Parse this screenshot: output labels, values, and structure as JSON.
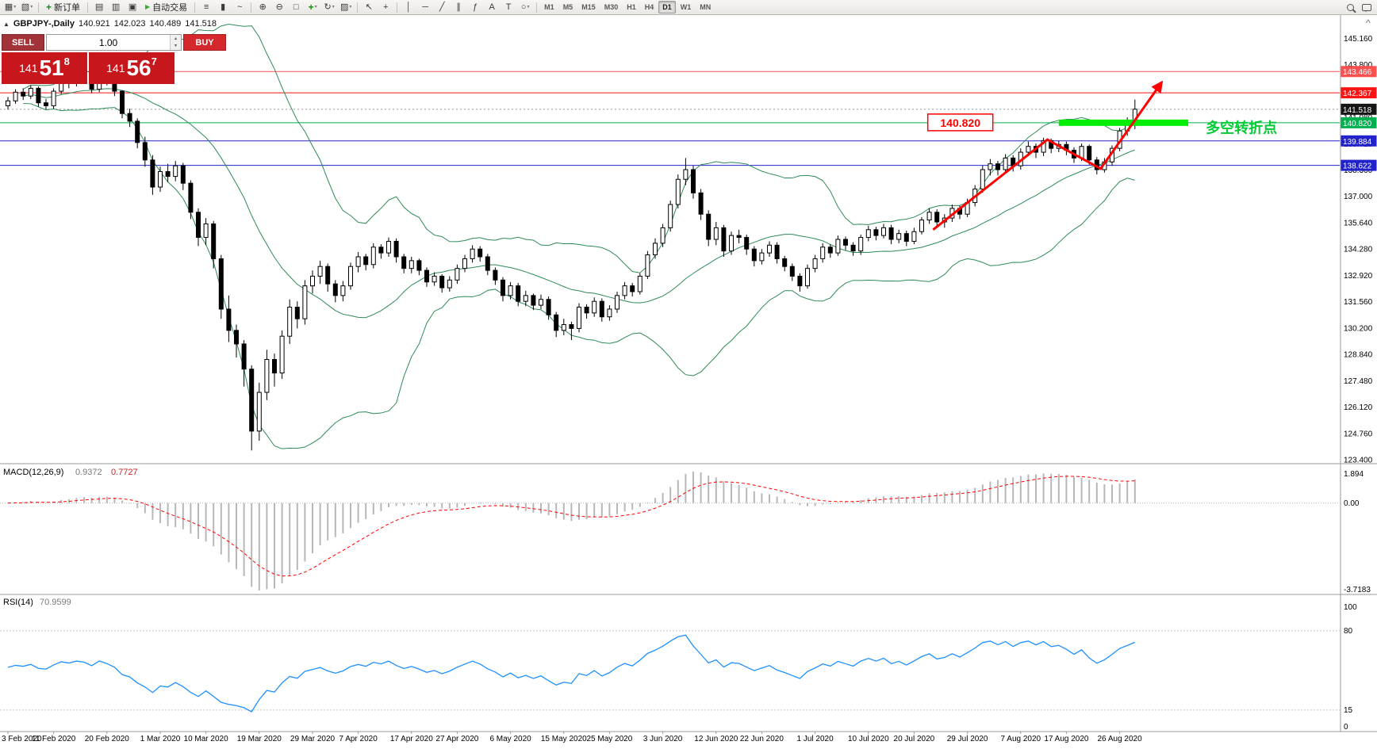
{
  "toolbar": {
    "new_order_label": "新订单",
    "auto_trading_label": "自动交易",
    "timeframes": [
      "M1",
      "M5",
      "M15",
      "M30",
      "H1",
      "H4",
      "D1",
      "W1",
      "MN"
    ],
    "active_timeframe": "D1"
  },
  "header": {
    "symbol_period": "GBPJPY-,Daily",
    "open": "140.921",
    "high": "142.023",
    "low": "140.489",
    "close": "141.518"
  },
  "one_click": {
    "sell_label": "SELL",
    "buy_label": "BUY",
    "lot_size": "1.00",
    "sell_price": {
      "base": "141",
      "big": "51",
      "sup": "8"
    },
    "buy_price": {
      "base": "141",
      "big": "56",
      "sup": "7"
    }
  },
  "chart_data": {
    "type": "candlestick",
    "symbol": "GBPJPY",
    "period": "Daily",
    "price_axis": [
      "145.160",
      "143.800",
      "142.440",
      "141.080",
      "139.720",
      "138.360",
      "137.000",
      "135.640",
      "134.280",
      "132.920",
      "131.560",
      "130.200",
      "128.840",
      "127.480",
      "126.120",
      "124.760",
      "123.400"
    ],
    "x_labels": [
      {
        "i": 0,
        "t": "3 Feb 2020"
      },
      {
        "i": 6,
        "t": "11 Feb 2020"
      },
      {
        "i": 13,
        "t": "20 Feb 2020"
      },
      {
        "i": 20,
        "t": "1 Mar 2020"
      },
      {
        "i": 26,
        "t": "10 Mar 2020"
      },
      {
        "i": 33,
        "t": "19 Mar 2020"
      },
      {
        "i": 40,
        "t": "29 Mar 2020"
      },
      {
        "i": 46,
        "t": "7 Apr 2020"
      },
      {
        "i": 53,
        "t": "17 Apr 2020"
      },
      {
        "i": 59,
        "t": "27 Apr 2020"
      },
      {
        "i": 66,
        "t": "6 May 2020"
      },
      {
        "i": 73,
        "t": "15 May 2020"
      },
      {
        "i": 79,
        "t": "25 May 2020"
      },
      {
        "i": 86,
        "t": "3 Jun 2020"
      },
      {
        "i": 93,
        "t": "12 Jun 2020"
      },
      {
        "i": 99,
        "t": "22 Jun 2020"
      },
      {
        "i": 106,
        "t": "1 Jul 2020"
      },
      {
        "i": 113,
        "t": "10 Jul 2020"
      },
      {
        "i": 119,
        "t": "20 Jul 2020"
      },
      {
        "i": 126,
        "t": "29 Jul 2020"
      },
      {
        "i": 133,
        "t": "7 Aug 2020"
      },
      {
        "i": 139,
        "t": "17 Aug 2020"
      },
      {
        "i": 146,
        "t": "26 Aug 2020"
      }
    ],
    "candles": [
      [
        141.7,
        142.15,
        141.5,
        141.95
      ],
      [
        141.95,
        142.55,
        141.8,
        142.4
      ],
      [
        142.4,
        142.6,
        142.0,
        142.2
      ],
      [
        142.2,
        142.75,
        142.05,
        142.6
      ],
      [
        142.6,
        142.7,
        141.65,
        141.85
      ],
      [
        141.85,
        142.05,
        141.5,
        141.7
      ],
      [
        141.7,
        142.6,
        141.55,
        142.45
      ],
      [
        142.45,
        143.2,
        142.3,
        143.05
      ],
      [
        143.05,
        143.25,
        142.6,
        142.85
      ],
      [
        142.85,
        143.4,
        142.7,
        143.2
      ],
      [
        143.2,
        143.35,
        142.85,
        143.05
      ],
      [
        143.05,
        143.15,
        142.35,
        142.55
      ],
      [
        142.55,
        143.45,
        142.4,
        143.3
      ],
      [
        143.3,
        143.5,
        142.75,
        142.95
      ],
      [
        142.95,
        143.05,
        142.2,
        142.45
      ],
      [
        142.45,
        142.5,
        141.05,
        141.3
      ],
      [
        141.3,
        141.55,
        140.6,
        140.9
      ],
      [
        140.9,
        141.05,
        139.5,
        139.8
      ],
      [
        139.8,
        140.1,
        138.55,
        138.9
      ],
      [
        138.9,
        139.15,
        137.1,
        137.5
      ],
      [
        137.5,
        138.55,
        137.25,
        138.3
      ],
      [
        138.3,
        138.7,
        137.75,
        138.05
      ],
      [
        138.05,
        138.85,
        137.8,
        138.6
      ],
      [
        138.6,
        138.75,
        137.35,
        137.7
      ],
      [
        137.7,
        137.85,
        135.85,
        136.2
      ],
      [
        136.2,
        136.4,
        134.45,
        134.9
      ],
      [
        134.9,
        135.9,
        134.5,
        135.6
      ],
      [
        135.6,
        135.75,
        133.3,
        133.8
      ],
      [
        133.8,
        134.0,
        130.7,
        131.2
      ],
      [
        131.2,
        131.9,
        129.5,
        130.1
      ],
      [
        130.1,
        130.4,
        128.7,
        129.4
      ],
      [
        129.4,
        129.6,
        127.2,
        128.1
      ],
      [
        128.1,
        128.3,
        123.9,
        124.9
      ],
      [
        124.9,
        127.4,
        124.4,
        126.9
      ],
      [
        126.9,
        129.1,
        126.5,
        128.6
      ],
      [
        128.6,
        128.9,
        127.2,
        127.9
      ],
      [
        127.9,
        130.1,
        127.6,
        129.8
      ],
      [
        129.8,
        131.7,
        129.4,
        131.3
      ],
      [
        131.3,
        131.6,
        130.2,
        130.7
      ],
      [
        130.7,
        132.7,
        130.4,
        132.4
      ],
      [
        132.4,
        133.2,
        132.0,
        132.9
      ],
      [
        132.9,
        133.7,
        132.5,
        133.4
      ],
      [
        133.4,
        133.55,
        132.1,
        132.5
      ],
      [
        132.5,
        132.7,
        131.55,
        131.9
      ],
      [
        131.9,
        132.65,
        131.6,
        132.4
      ],
      [
        132.4,
        133.6,
        132.2,
        133.4
      ],
      [
        133.4,
        134.15,
        133.1,
        133.9
      ],
      [
        133.9,
        134.05,
        133.2,
        133.5
      ],
      [
        133.5,
        134.6,
        133.3,
        134.4
      ],
      [
        134.4,
        134.55,
        133.8,
        134.1
      ],
      [
        134.1,
        134.9,
        133.9,
        134.7
      ],
      [
        134.7,
        134.85,
        133.6,
        133.9
      ],
      [
        133.9,
        134.05,
        133.05,
        133.3
      ],
      [
        133.3,
        133.9,
        133.05,
        133.7
      ],
      [
        133.7,
        133.8,
        132.95,
        133.2
      ],
      [
        133.2,
        133.35,
        132.35,
        132.6
      ],
      [
        132.6,
        133.1,
        132.4,
        132.9
      ],
      [
        132.9,
        133.0,
        132.05,
        132.3
      ],
      [
        132.3,
        132.9,
        132.1,
        132.7
      ],
      [
        132.7,
        133.5,
        132.5,
        133.3
      ],
      [
        133.3,
        134.0,
        133.1,
        133.8
      ],
      [
        133.8,
        134.5,
        133.6,
        134.3
      ],
      [
        134.3,
        134.45,
        133.65,
        133.9
      ],
      [
        133.9,
        134.05,
        132.95,
        133.2
      ],
      [
        133.2,
        133.35,
        132.45,
        132.7
      ],
      [
        132.7,
        132.85,
        131.6,
        131.9
      ],
      [
        131.9,
        132.6,
        131.7,
        132.4
      ],
      [
        132.4,
        132.55,
        131.35,
        131.6
      ],
      [
        131.6,
        132.15,
        131.35,
        131.9
      ],
      [
        131.9,
        132.0,
        131.15,
        131.4
      ],
      [
        131.4,
        131.95,
        131.2,
        131.7
      ],
      [
        131.7,
        131.85,
        130.65,
        130.9
      ],
      [
        130.9,
        131.05,
        129.75,
        130.1
      ],
      [
        130.1,
        130.7,
        129.85,
        130.4
      ],
      [
        130.4,
        130.55,
        129.6,
        130.2
      ],
      [
        130.2,
        131.5,
        130.0,
        131.3
      ],
      [
        131.3,
        131.45,
        130.7,
        131.0
      ],
      [
        131.0,
        131.8,
        130.8,
        131.6
      ],
      [
        131.6,
        131.75,
        130.55,
        130.8
      ],
      [
        130.8,
        131.4,
        130.6,
        131.2
      ],
      [
        131.2,
        132.1,
        131.0,
        131.9
      ],
      [
        131.9,
        132.6,
        131.7,
        132.4
      ],
      [
        132.4,
        132.55,
        131.85,
        132.1
      ],
      [
        132.1,
        133.05,
        131.95,
        132.9
      ],
      [
        132.9,
        134.2,
        132.75,
        134.0
      ],
      [
        134.0,
        134.85,
        133.8,
        134.6
      ],
      [
        134.6,
        135.6,
        134.4,
        135.4
      ],
      [
        135.4,
        136.8,
        135.2,
        136.6
      ],
      [
        136.6,
        138.15,
        136.4,
        137.9
      ],
      [
        137.9,
        139.0,
        137.6,
        138.4
      ],
      [
        138.4,
        138.6,
        136.9,
        137.2
      ],
      [
        137.2,
        137.4,
        135.8,
        136.1
      ],
      [
        136.1,
        136.3,
        134.45,
        134.8
      ],
      [
        134.8,
        135.7,
        134.5,
        135.4
      ],
      [
        135.4,
        135.55,
        133.9,
        134.2
      ],
      [
        134.2,
        135.2,
        134.0,
        135.0
      ],
      [
        135.0,
        135.3,
        134.6,
        134.9
      ],
      [
        134.9,
        135.05,
        134.0,
        134.3
      ],
      [
        134.3,
        134.45,
        133.4,
        133.7
      ],
      [
        133.7,
        134.3,
        133.5,
        134.1
      ],
      [
        134.1,
        134.7,
        133.9,
        134.5
      ],
      [
        134.5,
        134.65,
        133.55,
        133.8
      ],
      [
        133.8,
        133.95,
        133.15,
        133.4
      ],
      [
        133.4,
        133.55,
        132.65,
        132.9
      ],
      [
        132.9,
        133.05,
        132.1,
        132.4
      ],
      [
        132.4,
        133.5,
        132.25,
        133.3
      ],
      [
        133.3,
        134.0,
        133.1,
        133.8
      ],
      [
        133.8,
        134.6,
        133.6,
        134.4
      ],
      [
        134.4,
        134.55,
        133.85,
        134.1
      ],
      [
        134.1,
        135.0,
        133.95,
        134.8
      ],
      [
        134.8,
        134.95,
        134.25,
        134.5
      ],
      [
        134.5,
        134.65,
        133.95,
        134.2
      ],
      [
        134.2,
        135.05,
        134.0,
        134.9
      ],
      [
        134.9,
        135.5,
        134.7,
        135.3
      ],
      [
        135.3,
        135.45,
        134.75,
        135.0
      ],
      [
        135.0,
        135.6,
        134.85,
        135.4
      ],
      [
        135.4,
        135.55,
        134.55,
        134.8
      ],
      [
        134.8,
        135.3,
        134.6,
        135.1
      ],
      [
        135.1,
        135.25,
        134.45,
        134.7
      ],
      [
        134.7,
        135.4,
        134.55,
        135.2
      ],
      [
        135.2,
        135.95,
        135.05,
        135.8
      ],
      [
        135.8,
        136.4,
        135.6,
        136.2
      ],
      [
        136.2,
        136.35,
        135.45,
        135.7
      ],
      [
        135.7,
        136.1,
        135.4,
        135.9
      ],
      [
        135.9,
        136.6,
        135.7,
        136.4
      ],
      [
        136.4,
        136.55,
        135.85,
        136.1
      ],
      [
        136.1,
        136.9,
        135.95,
        136.7
      ],
      [
        136.7,
        137.6,
        136.5,
        137.4
      ],
      [
        137.4,
        138.6,
        137.2,
        138.4
      ],
      [
        138.4,
        138.95,
        138.1,
        138.7
      ],
      [
        138.7,
        138.85,
        138.1,
        138.4
      ],
      [
        138.4,
        139.2,
        138.2,
        139.0
      ],
      [
        139.0,
        139.15,
        138.3,
        138.6
      ],
      [
        138.6,
        139.5,
        138.4,
        139.3
      ],
      [
        139.3,
        139.85,
        139.1,
        139.6
      ],
      [
        139.6,
        139.75,
        139.0,
        139.3
      ],
      [
        139.3,
        140.05,
        139.1,
        139.9
      ],
      [
        139.9,
        140.0,
        139.25,
        139.5
      ],
      [
        139.5,
        139.9,
        139.3,
        139.7
      ],
      [
        139.7,
        139.85,
        139.15,
        139.4
      ],
      [
        139.4,
        139.55,
        138.75,
        139.0
      ],
      [
        139.0,
        139.75,
        138.85,
        139.6
      ],
      [
        139.6,
        139.7,
        138.65,
        138.9
      ],
      [
        138.9,
        139.05,
        138.15,
        138.4
      ],
      [
        138.4,
        139.0,
        138.25,
        138.8
      ],
      [
        138.8,
        139.65,
        138.6,
        139.5
      ],
      [
        139.5,
        140.55,
        139.35,
        140.4
      ],
      [
        140.4,
        141.1,
        140.15,
        140.92
      ],
      [
        140.92,
        142.02,
        140.49,
        141.52
      ]
    ],
    "hlines": [
      {
        "price": 143.466,
        "label": "143.466",
        "color": "#ff5050"
      },
      {
        "price": 142.367,
        "label": "142.367",
        "color": "#ff1414"
      },
      {
        "price": 141.518,
        "label": "141.518",
        "color": "#151515",
        "line_color": "#9a9a9a",
        "dotted": true,
        "current": true
      },
      {
        "price": 140.82,
        "label": "140.820",
        "color": "#00b050"
      },
      {
        "price": 139.884,
        "label": "139.884",
        "color": "#2222cc"
      },
      {
        "price": 138.622,
        "label": "138.622",
        "color": "#2222cc"
      }
    ],
    "bollinger": {
      "period": 20,
      "deviation": 2,
      "color": "#2e8b57"
    },
    "highlight_bar": {
      "from_idx": 138,
      "to_idx": 155,
      "price": 140.82,
      "color": "#00ee00",
      "thickness": 8
    },
    "trend_line": {
      "points": [
        [
          121.5,
          135.3
        ],
        [
          136.5,
          139.95
        ],
        [
          143.5,
          138.45
        ],
        [
          151.5,
          142.9
        ]
      ],
      "color": "#ff0000",
      "width": 3
    },
    "price_label_box": {
      "text": "140.820",
      "idx": 120.8,
      "price": 140.82
    },
    "annotation": {
      "text": "多空转折点",
      "idx": 157.3,
      "price": 140.55,
      "color": "#00cc33"
    },
    "macd": {
      "label": "MACD(12,26,9)",
      "main_value": "0.9372",
      "signal_value": "0.7727",
      "axis": [
        "1.894",
        "0.00",
        "-3.7183"
      ],
      "histogram_color": "#b8b8b8",
      "signal_color": "#ff0000"
    },
    "rsi": {
      "label": "RSI(14)",
      "value": "70.9599",
      "color": "#1e90ff",
      "levels": [
        80,
        15
      ],
      "axis": [
        "100",
        "80",
        "15",
        "0"
      ]
    }
  }
}
